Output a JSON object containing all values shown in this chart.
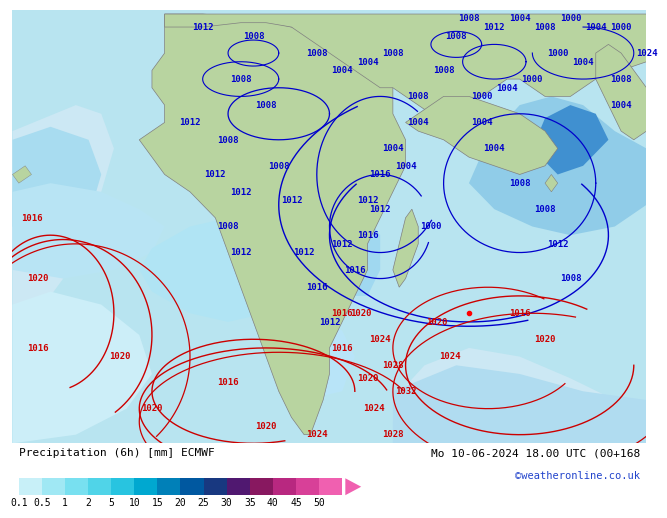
{
  "title_left": "Precipitation (6h) [mm] ECMWF",
  "title_right": "Mo 10-06-2024 18.00 UTC (00+168",
  "credit": "©weatheronline.co.uk",
  "colorbar_levels": [
    0.1,
    0.5,
    1,
    2,
    5,
    10,
    15,
    20,
    25,
    30,
    35,
    40,
    45,
    50
  ],
  "colorbar_colors": [
    "#c8f0f8",
    "#a0e8f4",
    "#78e0f0",
    "#50d4e8",
    "#28c4e0",
    "#00a8d0",
    "#0080b8",
    "#0058a0",
    "#183880",
    "#501870",
    "#881860",
    "#b82880",
    "#d84098",
    "#f060b0"
  ],
  "ocean_color": "#b8e4f0",
  "land_color": "#b8d4a0",
  "precip_light": "#c0ecf8",
  "precip_mid": "#88d8f0",
  "precip_heavy": "#50c0e8",
  "bg_white": "#ffffff",
  "title_fontsize": 8.0,
  "credit_fontsize": 7.5,
  "tick_fontsize": 7.0,
  "label_fontsize": 6.5,
  "isobar_blue": "#0000cc",
  "isobar_red": "#cc0000"
}
